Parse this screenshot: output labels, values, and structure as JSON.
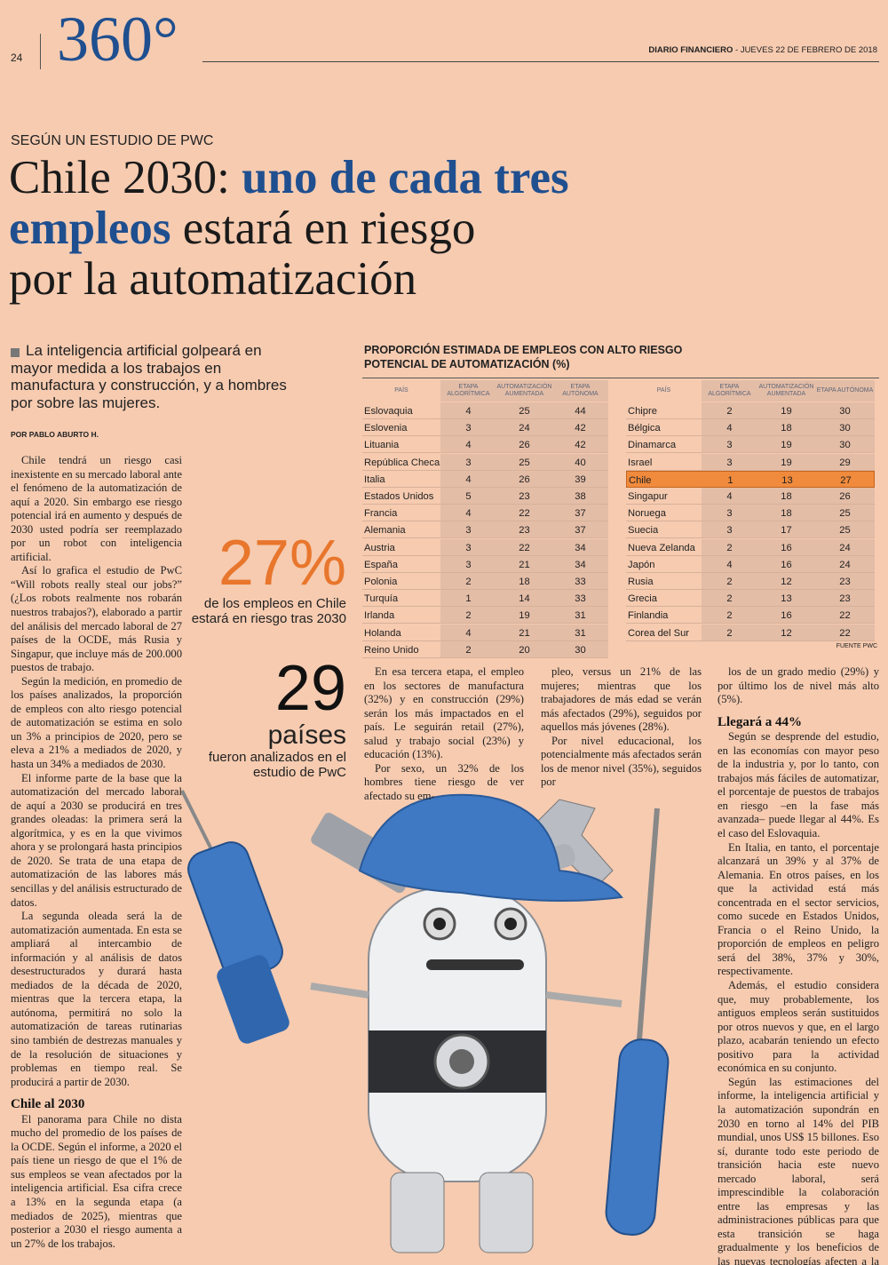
{
  "header": {
    "page_number": "24",
    "section": "360°",
    "publication": "DIARIO FINANCIERO",
    "date": "- JUEVES 22 DE FEBRERO DE 2018"
  },
  "article": {
    "kicker": "SEGÚN UN ESTUDIO DE PWC",
    "title_lines": [
      [
        {
          "text": "Chile 2030: ",
          "emphasis": false
        },
        {
          "text": "uno de cada tres",
          "emphasis": true
        }
      ],
      [
        {
          "text": "empleos",
          "emphasis": true
        },
        {
          "text": " estará en riesgo",
          "emphasis": false
        }
      ],
      [
        {
          "text": "por la automatización",
          "emphasis": false
        }
      ]
    ],
    "lead": "La inteligencia artificial golpeará en mayor medida a los trabajos en manufactura y construcción, y a hombres por sobre las mujeres.",
    "byline": "POR PABLO ABURTO H.",
    "columns": [
      [
        {
          "p": "Chile tendrá un riesgo casi inexistente en su mercado laboral ante el fenómeno de la automatización de aquí a 2020. Sin embargo ese riesgo potencial irá en aumento y después de 2030 usted podría ser reemplazado por un robot con inteligencia artificial."
        },
        {
          "p": "Así lo grafica el estudio de PwC “Will robots really steal our jobs?” (¿Los robots realmente nos robarán nuestros trabajos?), elaborado a partir del análisis del mercado laboral de 27 países de la OCDE, más Rusia y Singapur, que incluye más de 200.000 puestos de trabajo."
        },
        {
          "p": "Según la medición, en promedio de los países analizados, la proporción de empleos con alto riesgo potencial de automatización se estima en solo un 3% a principios de 2020, pero se eleva a 21% a mediados de 2020, y hasta un 34% a mediados de 2030."
        },
        {
          "p": "El informe parte de la base que la automatización del mercado laboral de aquí a 2030 se producirá en tres grandes oleadas: la primera será la algorítmica, y es en la que vivimos ahora y se prolongará hasta principios de 2020. Se trata de una etapa de automatización de las labores más sencillas y del análisis estructurado de datos."
        },
        {
          "p": "La segunda oleada será la de automatización aumentada. En esta se ampliará al intercambio de información y al análisis de datos desestructurados y durará hasta mediados de la década de 2020, mientras que la tercera etapa, la autónoma, permitirá no solo la automatización de tareas rutinarias sino también de destrezas manuales y de la resolución de situaciones y problemas en tiempo real. Se producirá a partir de 2030."
        },
        {
          "h": "Chile al 2030"
        },
        {
          "p": "El panorama para Chile no dista mucho del promedio de los países de la OCDE. Según el informe, a 2020 el país tiene un riesgo de que el 1% de sus empleos se vean afectados por la inteligencia artificial. Esa cifra crece a 13% en la segunda etapa (a mediados de 2025), mientras que posterior a 2030 el riesgo aumenta a un 27% de los trabajos."
        }
      ],
      [
        {
          "p": "En esa tercera etapa, el empleo en los sectores de manufactura (32%) y en construcción (29%) serán los más impactados en el país. Le seguirán retail (27%), salud y trabajo social (23%) y educación (13%)."
        },
        {
          "p": "Por sexo, un 32% de los hombres tiene riesgo de ver afectado su em-"
        }
      ],
      [
        {
          "p": "pleo, versus un 21% de las mujeres; mientras que los trabajadores de más edad se verán más afectados (29%), seguidos por aquellos más jóvenes (28%)."
        },
        {
          "p": "Por nivel educacional, los potencialmente más afectados serán los de menor nivel (35%), seguidos por"
        }
      ],
      [
        {
          "p": "los de un grado medio (29%) y por último los de nivel más alto (5%)."
        },
        {
          "h": "Llegará a 44%"
        },
        {
          "p": "Según se desprende del estudio, en las economías con mayor peso de la industria y, por lo tanto, con trabajos más fáciles de automatizar, el porcentaje de puestos de trabajos en riesgo –en la fase más avanzada– puede llegar al 44%. Es el caso del Eslovaquia."
        },
        {
          "p": "En Italia, en tanto, el porcentaje alcanzará un 39% y al 37% de Alemania. En otros países, en los que la actividad está más concentrada en el sector servicios, como sucede en Estados Unidos, Francia o el Reino Unido, la proporción de empleos en peligro será del 38%, 37% y 30%, respectivamente."
        },
        {
          "p": "Además, el estudio considera que, muy probablemente, los antiguos empleos serán sustituidos por otros nuevos y que, en el largo plazo, acabarán teniendo un efecto positivo para la actividad económica en su conjunto."
        },
        {
          "p": "Según las estimaciones del informe, la inteligencia artificial y la automatización supondrán en 2030 en torno al 14% del PIB mundial, unos US$ 15 billones. Eso sí, durante todo este periodo de transición hacia este nuevo mercado laboral, será imprescindible la colaboración entre las empresas y las administraciones públicas para que esta transición se haga gradualmente y los beneficios de las nuevas tecnologías afecten a la mayor parte de la sociedad y no solo a unos pocos."
        }
      ]
    ]
  },
  "callouts": [
    {
      "figure": "27%",
      "unit": null,
      "caption": "de los empleos en Chile estará en riesgo tras 2030"
    },
    {
      "figure": "29",
      "unit": "países",
      "caption": "fueron analizados en el estudio de PwC"
    }
  ],
  "table": {
    "title": "PROPORCIÓN ESTIMADA DE EMPLEOS CON ALTO RIESGO POTENCIAL DE AUTOMATIZACIÓN (%)",
    "headers": [
      "PAÍS",
      "ETAPA ALGORÍTMICA",
      "AUTOMATIZACIÓN AUMENTADA",
      "ETAPA AUTÓNOMA"
    ],
    "parts": [
      {
        "rows": [
          [
            "Eslovaquia",
            4,
            25,
            44
          ],
          [
            "Eslovenia",
            3,
            24,
            42
          ],
          [
            "Lituania",
            4,
            26,
            42
          ],
          [
            "República Checa",
            3,
            25,
            40
          ],
          [
            "Italia",
            4,
            26,
            39
          ],
          [
            "Estados Unidos",
            5,
            23,
            38
          ],
          [
            "Francia",
            4,
            22,
            37
          ],
          [
            "Alemania",
            3,
            23,
            37
          ],
          [
            "Austria",
            3,
            22,
            34
          ],
          [
            "España",
            3,
            21,
            34
          ],
          [
            "Polonia",
            2,
            18,
            33
          ],
          [
            "Turquía",
            1,
            14,
            33
          ],
          [
            "Irlanda",
            2,
            19,
            31
          ],
          [
            "Holanda",
            4,
            21,
            31
          ],
          [
            "Reino Unido",
            2,
            20,
            30
          ]
        ],
        "highlighted_row": null
      },
      {
        "rows": [
          [
            "Chipre",
            2,
            19,
            30
          ],
          [
            "Bélgica",
            4,
            18,
            30
          ],
          [
            "Dinamarca",
            3,
            19,
            30
          ],
          [
            "Israel",
            3,
            19,
            29
          ],
          [
            "Chile",
            1,
            13,
            27
          ],
          [
            "Singapur",
            4,
            18,
            26
          ],
          [
            "Noruega",
            3,
            18,
            25
          ],
          [
            "Suecia",
            3,
            17,
            25
          ],
          [
            "Nueva Zelanda",
            2,
            16,
            24
          ],
          [
            "Japón",
            4,
            16,
            24
          ],
          [
            "Rusia",
            2,
            12,
            23
          ],
          [
            "Grecia",
            2,
            13,
            23
          ],
          [
            "Finlandia",
            2,
            16,
            22
          ],
          [
            "Corea del Sur",
            2,
            12,
            22
          ]
        ],
        "highlighted_row": 4
      }
    ],
    "highlight_color": "#f08a3c",
    "source": "FUENTE PWC"
  }
}
